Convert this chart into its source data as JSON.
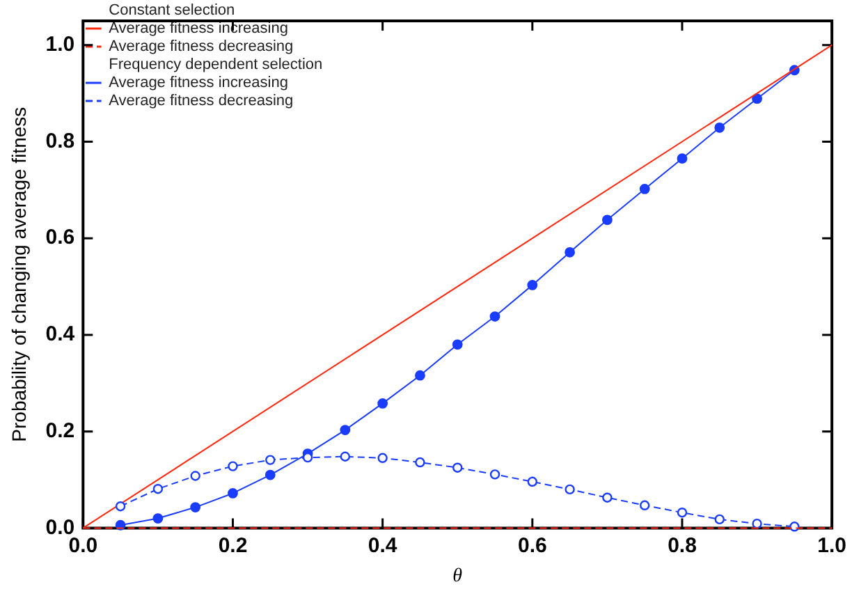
{
  "chart_data": {
    "type": "line",
    "xlabel": "θ",
    "ylabel": "Probability of changing average fitness",
    "annotations": [
      "Constant selection",
      "Frequency dependent selection"
    ],
    "xlim": [
      0,
      1
    ],
    "ylim": [
      0,
      1.05
    ],
    "xticks": [
      {
        "value": 0,
        "label": "0.0"
      },
      {
        "value": 0.2,
        "label": "0.2"
      },
      {
        "value": 0.4,
        "label": "0.4"
      },
      {
        "value": 0.6,
        "label": "0.6"
      },
      {
        "value": 0.8,
        "label": "0.8"
      },
      {
        "value": 1,
        "label": "1.0"
      }
    ],
    "yticks": [
      {
        "value": 0,
        "label": "0.0"
      },
      {
        "value": 0.2,
        "label": "0.2"
      },
      {
        "value": 0.4,
        "label": "0.4"
      },
      {
        "value": 0.6,
        "label": "0.6"
      },
      {
        "value": 0.8,
        "label": "0.8"
      },
      {
        "value": 1,
        "label": "1.0"
      }
    ],
    "grid": false,
    "legend": "top left",
    "series": [
      {
        "name": "Average fitness increasing",
        "color": "#ff2a10",
        "x": [
          0,
          1
        ],
        "values": [
          0,
          1
        ],
        "line_style": "solid",
        "marker": "none"
      },
      {
        "name": "Average fitness decreasing",
        "color": "#ff2a10",
        "x": [
          0,
          1
        ],
        "values": [
          0,
          0
        ],
        "line_style": "dashed",
        "marker": "none"
      },
      {
        "name": "Average fitness increasing",
        "color": "#1a3cff",
        "x": [
          0.05,
          0.1,
          0.15,
          0.2,
          0.25,
          0.3,
          0.35,
          0.4,
          0.45,
          0.5,
          0.55,
          0.6,
          0.65,
          0.7,
          0.75,
          0.8,
          0.85,
          0.9,
          0.95
        ],
        "values": [
          0.006,
          0.02,
          0.043,
          0.072,
          0.11,
          0.154,
          0.203,
          0.258,
          0.316,
          0.38,
          0.438,
          0.503,
          0.571,
          0.638,
          0.702,
          0.765,
          0.829,
          0.889,
          0.948
        ],
        "line_style": "solid",
        "marker": "circle"
      },
      {
        "name": "Average fitness decreasing",
        "color": "#1a3cff",
        "x": [
          0.05,
          0.1,
          0.15,
          0.2,
          0.25,
          0.3,
          0.35,
          0.4,
          0.45,
          0.5,
          0.55,
          0.6,
          0.65,
          0.7,
          0.75,
          0.8,
          0.85,
          0.9,
          0.95
        ],
        "values": [
          0.045,
          0.081,
          0.108,
          0.128,
          0.141,
          0.146,
          0.148,
          0.145,
          0.136,
          0.125,
          0.111,
          0.096,
          0.08,
          0.063,
          0.047,
          0.032,
          0.018,
          0.009,
          0.003
        ],
        "line_style": "dashed",
        "marker": "circle"
      }
    ]
  }
}
